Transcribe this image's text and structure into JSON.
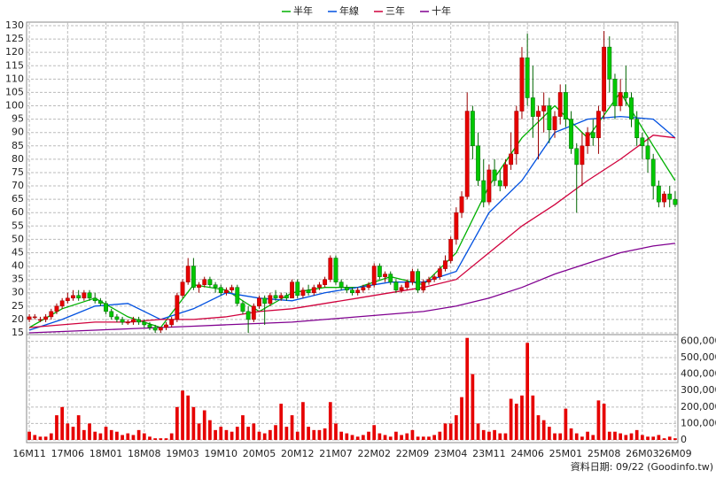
{
  "chart_data": {
    "type": "candlestick",
    "categories": [
      "16M11",
      null,
      null,
      null,
      null,
      null,
      null,
      "17M06",
      null,
      null,
      null,
      null,
      null,
      null,
      "18M01",
      null,
      null,
      null,
      null,
      null,
      null,
      "18M08",
      null,
      null,
      null,
      null,
      null,
      null,
      "19M03",
      null,
      null,
      null,
      null,
      null,
      null,
      "19M10",
      null,
      null,
      null,
      null,
      null,
      null,
      "20M05",
      null,
      null,
      null,
      null,
      null,
      null,
      "20M12",
      null,
      null,
      null,
      null,
      null,
      null,
      "21M07",
      null,
      null,
      null,
      null,
      null,
      null,
      "22M02",
      null,
      null,
      null,
      null,
      null,
      null,
      "22M09",
      null,
      null,
      null,
      null,
      null,
      null,
      "23M04",
      null,
      null,
      null,
      null,
      null,
      null,
      "23M11",
      null,
      null,
      null,
      null,
      null,
      null,
      "24M06",
      null,
      null,
      null,
      null,
      null,
      null,
      "25M01",
      null,
      null,
      null,
      null,
      null,
      null,
      "25M08",
      null,
      null,
      null,
      null,
      null,
      null,
      "26M03",
      null,
      null,
      null,
      null,
      null,
      "26M09"
    ],
    "ohlc": [
      [
        20,
        22,
        19,
        21
      ],
      [
        21,
        22,
        20,
        21
      ],
      [
        20,
        21,
        19,
        20
      ],
      [
        20,
        22,
        19,
        21
      ],
      [
        21,
        24,
        20,
        23
      ],
      [
        23,
        26,
        22,
        25
      ],
      [
        25,
        28,
        24,
        27
      ],
      [
        27,
        30,
        26,
        28
      ],
      [
        28,
        31,
        27,
        29
      ],
      [
        29,
        31,
        27,
        28
      ],
      [
        28,
        31,
        27,
        30
      ],
      [
        30,
        31,
        27,
        28
      ],
      [
        28,
        30,
        26,
        27
      ],
      [
        27,
        28,
        25,
        26
      ],
      [
        26,
        27,
        22,
        23
      ],
      [
        23,
        24,
        20,
        21
      ],
      [
        21,
        22,
        19,
        20
      ],
      [
        20,
        21,
        18,
        19
      ],
      [
        19,
        20,
        18,
        19
      ],
      [
        19,
        21,
        18,
        20
      ],
      [
        20,
        21,
        18,
        19
      ],
      [
        19,
        20,
        17,
        18
      ],
      [
        18,
        19,
        16,
        17
      ],
      [
        17,
        18,
        15,
        16
      ],
      [
        16,
        17,
        15,
        17
      ],
      [
        17,
        19,
        16,
        18
      ],
      [
        18,
        21,
        17,
        20
      ],
      [
        20,
        30,
        19,
        29
      ],
      [
        29,
        35,
        28,
        34
      ],
      [
        34,
        43,
        33,
        40
      ],
      [
        40,
        43,
        31,
        32
      ],
      [
        32,
        34,
        30,
        33
      ],
      [
        33,
        36,
        32,
        35
      ],
      [
        35,
        36,
        32,
        33
      ],
      [
        33,
        34,
        30,
        32
      ],
      [
        32,
        33,
        29,
        30
      ],
      [
        30,
        32,
        29,
        31
      ],
      [
        31,
        33,
        30,
        32
      ],
      [
        32,
        33,
        25,
        26
      ],
      [
        26,
        27,
        22,
        23
      ],
      [
        23,
        25,
        15,
        20
      ],
      [
        20,
        26,
        19,
        25
      ],
      [
        25,
        29,
        24,
        28
      ],
      [
        28,
        29,
        18,
        26
      ],
      [
        26,
        30,
        25,
        29
      ],
      [
        29,
        31,
        27,
        28
      ],
      [
        28,
        30,
        27,
        29
      ],
      [
        29,
        30,
        27,
        28
      ],
      [
        28,
        35,
        28,
        34
      ],
      [
        34,
        35,
        28,
        29
      ],
      [
        29,
        32,
        28,
        31
      ],
      [
        31,
        33,
        29,
        30
      ],
      [
        30,
        33,
        29,
        32
      ],
      [
        32,
        34,
        31,
        33
      ],
      [
        33,
        36,
        32,
        35
      ],
      [
        35,
        44,
        34,
        43
      ],
      [
        43,
        44,
        33,
        34
      ],
      [
        34,
        35,
        31,
        32
      ],
      [
        32,
        33,
        30,
        31
      ],
      [
        31,
        32,
        29,
        30
      ],
      [
        30,
        32,
        29,
        31
      ],
      [
        31,
        33,
        30,
        32
      ],
      [
        32,
        34,
        31,
        33
      ],
      [
        33,
        41,
        32,
        40
      ],
      [
        40,
        41,
        35,
        36
      ],
      [
        36,
        38,
        34,
        37
      ],
      [
        37,
        38,
        33,
        34
      ],
      [
        34,
        35,
        30,
        31
      ],
      [
        31,
        33,
        30,
        32
      ],
      [
        32,
        35,
        31,
        34
      ],
      [
        34,
        39,
        33,
        38
      ],
      [
        38,
        39,
        30,
        31
      ],
      [
        31,
        35,
        30,
        34
      ],
      [
        34,
        36,
        33,
        35
      ],
      [
        35,
        37,
        34,
        36
      ],
      [
        36,
        40,
        35,
        39
      ],
      [
        39,
        44,
        38,
        42
      ],
      [
        42,
        51,
        41,
        50
      ],
      [
        50,
        62,
        48,
        60
      ],
      [
        60,
        68,
        58,
        66
      ],
      [
        66,
        105,
        65,
        98
      ],
      [
        98,
        100,
        80,
        85
      ],
      [
        85,
        90,
        70,
        72
      ],
      [
        72,
        80,
        62,
        64
      ],
      [
        64,
        78,
        63,
        76
      ],
      [
        76,
        80,
        70,
        72
      ],
      [
        72,
        76,
        68,
        70
      ],
      [
        70,
        80,
        69,
        78
      ],
      [
        78,
        90,
        76,
        82
      ],
      [
        82,
        100,
        78,
        98
      ],
      [
        98,
        122,
        95,
        118
      ],
      [
        118,
        127,
        100,
        103
      ],
      [
        103,
        115,
        88,
        96
      ],
      [
        96,
        100,
        80,
        98
      ],
      [
        98,
        105,
        90,
        100
      ],
      [
        100,
        103,
        86,
        91
      ],
      [
        91,
        98,
        88,
        96
      ],
      [
        96,
        108,
        93,
        105
      ],
      [
        105,
        108,
        92,
        95
      ],
      [
        95,
        98,
        82,
        84
      ],
      [
        84,
        86,
        60,
        78
      ],
      [
        78,
        90,
        70,
        85
      ],
      [
        85,
        92,
        82,
        90
      ],
      [
        90,
        95,
        85,
        88
      ],
      [
        88,
        100,
        82,
        98
      ],
      [
        98,
        128,
        95,
        122
      ],
      [
        122,
        126,
        105,
        110
      ],
      [
        110,
        112,
        95,
        100
      ],
      [
        100,
        110,
        98,
        105
      ],
      [
        105,
        115,
        100,
        103
      ],
      [
        103,
        105,
        92,
        95
      ],
      [
        95,
        98,
        85,
        88
      ],
      [
        88,
        90,
        80,
        85
      ],
      [
        85,
        88,
        75,
        80
      ],
      [
        80,
        82,
        65,
        70
      ],
      [
        70,
        72,
        62,
        64
      ],
      [
        64,
        68,
        62,
        67
      ],
      [
        67,
        70,
        62,
        65
      ],
      [
        65,
        68,
        62,
        63
      ]
    ],
    "up_color": "#e60000",
    "down_color": "#00c800",
    "ylim": [
      15,
      130
    ],
    "yticks": [
      15,
      20,
      25,
      30,
      35,
      40,
      45,
      50,
      55,
      60,
      65,
      70,
      75,
      80,
      85,
      90,
      95,
      100,
      105,
      110,
      115,
      120,
      125,
      130
    ],
    "grid": true,
    "series": [
      {
        "name": "半年",
        "color": "#00b000",
        "x": [
          0,
          6,
          12,
          18,
          24,
          30,
          36,
          42,
          48,
          54,
          60,
          66,
          72,
          78,
          84,
          90,
          96,
          102,
          108,
          114,
          118
        ],
        "values": [
          17,
          24,
          28,
          21,
          17,
          33,
          31,
          23,
          30,
          32,
          32,
          36,
          33,
          45,
          70,
          88,
          100,
          88,
          105,
          85,
          72
        ]
      },
      {
        "name": "年線",
        "color": "#0050e0",
        "x": [
          0,
          6,
          12,
          18,
          24,
          30,
          36,
          42,
          48,
          54,
          60,
          66,
          72,
          78,
          84,
          90,
          96,
          102,
          108,
          114,
          118
        ],
        "values": [
          16,
          20,
          25,
          26,
          20,
          24,
          30,
          28,
          27,
          30,
          32,
          34,
          34,
          38,
          60,
          72,
          90,
          95,
          96,
          95,
          88
        ]
      },
      {
        "name": "三年",
        "color": "#d0003c",
        "x": [
          0,
          6,
          12,
          18,
          24,
          30,
          36,
          42,
          48,
          54,
          60,
          66,
          72,
          78,
          84,
          90,
          96,
          102,
          108,
          114,
          118
        ],
        "values": [
          17,
          18,
          19,
          19,
          20,
          20,
          21,
          23,
          24,
          26,
          28,
          30,
          32,
          35,
          45,
          55,
          63,
          72,
          80,
          89,
          88
        ]
      },
      {
        "name": "十年",
        "color": "#800090",
        "x": [
          0,
          6,
          12,
          18,
          24,
          30,
          36,
          42,
          48,
          54,
          60,
          66,
          72,
          78,
          84,
          90,
          96,
          102,
          108,
          114,
          118
        ],
        "values": [
          15,
          15.5,
          16,
          16.5,
          17,
          17.5,
          18,
          18.5,
          19,
          20,
          21,
          22,
          23,
          25,
          28,
          32,
          37,
          41,
          45,
          47.5,
          48.5
        ]
      }
    ],
    "volume": {
      "color": "#e60000",
      "ylim": [
        0,
        640000
      ],
      "yticks": [
        0,
        {
          "value": 100000,
          "label": "100,000"
        },
        {
          "value": 200000,
          "label": "200,000"
        },
        {
          "value": 300000,
          "label": "300,000"
        },
        {
          "value": 400000,
          "label": "400,000"
        },
        {
          "value": 500000,
          "label": "500,000"
        },
        {
          "value": 600000,
          "label": "600,000"
        }
      ],
      "values": [
        50000,
        30000,
        20000,
        20000,
        40000,
        150000,
        200000,
        100000,
        80000,
        150000,
        60000,
        100000,
        50000,
        40000,
        80000,
        60000,
        50000,
        30000,
        40000,
        30000,
        60000,
        40000,
        20000,
        10000,
        10000,
        10000,
        40000,
        200000,
        300000,
        270000,
        200000,
        100000,
        180000,
        120000,
        60000,
        80000,
        60000,
        50000,
        80000,
        150000,
        80000,
        100000,
        50000,
        40000,
        60000,
        90000,
        220000,
        80000,
        150000,
        50000,
        230000,
        80000,
        60000,
        60000,
        70000,
        230000,
        100000,
        50000,
        40000,
        30000,
        20000,
        30000,
        50000,
        90000,
        40000,
        30000,
        20000,
        50000,
        30000,
        40000,
        60000,
        20000,
        20000,
        20000,
        30000,
        50000,
        100000,
        100000,
        150000,
        260000,
        620000,
        400000,
        100000,
        60000,
        50000,
        60000,
        40000,
        40000,
        250000,
        220000,
        270000,
        590000,
        270000,
        150000,
        120000,
        80000,
        40000,
        40000,
        190000,
        70000,
        40000,
        20000,
        50000,
        30000,
        240000,
        220000,
        50000,
        50000,
        40000,
        30000,
        40000,
        60000,
        30000,
        20000,
        20000,
        30000,
        10000,
        20000,
        10000
      ]
    },
    "footer": "資料日期: 09/22  (Goodinfo.tw)"
  }
}
